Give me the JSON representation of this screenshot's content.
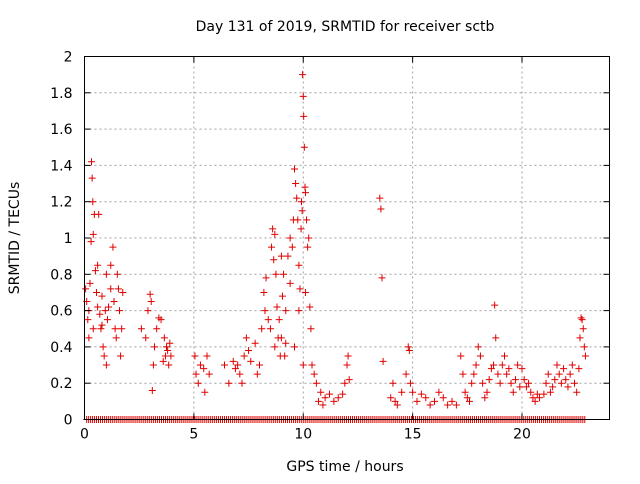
{
  "chart_data": {
    "type": "scatter",
    "title": "Day 131 of 2019, SRMTID for receiver sctb",
    "xlabel": "GPS time / hours",
    "ylabel": "SRMTID / TECUs",
    "xlim": [
      0,
      24
    ],
    "ylim": [
      0,
      2
    ],
    "xticks": [
      0,
      5,
      10,
      15,
      20
    ],
    "yticks": [
      0,
      0.2,
      0.4,
      0.6,
      0.8,
      1,
      1.2,
      1.4,
      1.6,
      1.8,
      2
    ],
    "xtick_labels": [
      "0",
      "5",
      "10",
      "15",
      "20"
    ],
    "ytick_labels": [
      "0",
      "0.2",
      "0.4",
      "0.6",
      "0.8",
      "1",
      "1.2",
      "1.4",
      "1.6",
      "1.8",
      "2"
    ],
    "grid": true,
    "marker": "+",
    "marker_color": "#e00000",
    "series": [
      {
        "name": "SRMTID",
        "points": [
          [
            0.05,
            0.72
          ],
          [
            0.1,
            0.65
          ],
          [
            0.15,
            0.55
          ],
          [
            0.2,
            0.6
          ],
          [
            0.25,
            0.75
          ],
          [
            0.3,
            0.98
          ],
          [
            0.32,
            1.42
          ],
          [
            0.35,
            1.33
          ],
          [
            0.38,
            1.2
          ],
          [
            0.4,
            1.02
          ],
          [
            0.45,
            1.13
          ],
          [
            0.5,
            0.82
          ],
          [
            0.55,
            0.7
          ],
          [
            0.6,
            0.62
          ],
          [
            0.65,
            1.13
          ],
          [
            0.7,
            0.58
          ],
          [
            0.75,
            0.5
          ],
          [
            0.8,
            0.68
          ],
          [
            0.85,
            0.4
          ],
          [
            0.9,
            0.35
          ],
          [
            0.95,
            0.6
          ],
          [
            1.0,
            0.3
          ],
          [
            1.05,
            0.55
          ],
          [
            1.1,
            0.62
          ],
          [
            1.2,
            0.72
          ],
          [
            1.3,
            0.95
          ],
          [
            1.35,
            0.65
          ],
          [
            1.4,
            0.5
          ],
          [
            1.45,
            0.45
          ],
          [
            1.5,
            0.8
          ],
          [
            1.55,
            0.72
          ],
          [
            1.6,
            0.6
          ],
          [
            1.65,
            0.35
          ],
          [
            1.7,
            0.5
          ],
          [
            1.75,
            0.7
          ],
          [
            0.2,
            0.45
          ],
          [
            0.4,
            0.5
          ],
          [
            0.6,
            0.85
          ],
          [
            0.8,
            0.52
          ],
          [
            1.0,
            0.8
          ],
          [
            1.2,
            0.85
          ],
          [
            2.6,
            0.5
          ],
          [
            2.8,
            0.45
          ],
          [
            2.9,
            0.6
          ],
          [
            3.0,
            0.69
          ],
          [
            3.05,
            0.65
          ],
          [
            3.1,
            0.16
          ],
          [
            3.15,
            0.3
          ],
          [
            3.2,
            0.4
          ],
          [
            3.3,
            0.5
          ],
          [
            3.4,
            0.56
          ],
          [
            3.5,
            0.55
          ],
          [
            3.6,
            0.32
          ],
          [
            3.7,
            0.35
          ],
          [
            3.75,
            0.4
          ],
          [
            3.8,
            0.38
          ],
          [
            3.85,
            0.3
          ],
          [
            3.9,
            0.42
          ],
          [
            3.95,
            0.35
          ],
          [
            3.65,
            0.45
          ],
          [
            5.05,
            0.35
          ],
          [
            5.1,
            0.25
          ],
          [
            5.2,
            0.2
          ],
          [
            5.3,
            0.3
          ],
          [
            5.45,
            0.28
          ],
          [
            5.5,
            0.15
          ],
          [
            5.6,
            0.35
          ],
          [
            5.7,
            0.25
          ],
          [
            6.4,
            0.3
          ],
          [
            6.6,
            0.2
          ],
          [
            6.8,
            0.32
          ],
          [
            6.9,
            0.28
          ],
          [
            7.0,
            0.3
          ],
          [
            7.1,
            0.25
          ],
          [
            7.2,
            0.2
          ],
          [
            7.3,
            0.35
          ],
          [
            7.4,
            0.45
          ],
          [
            7.5,
            0.38
          ],
          [
            7.6,
            0.32
          ],
          [
            7.8,
            0.42
          ],
          [
            7.9,
            0.25
          ],
          [
            8.0,
            0.3
          ],
          [
            8.1,
            0.5
          ],
          [
            8.2,
            0.7
          ],
          [
            8.25,
            0.6
          ],
          [
            8.3,
            0.78
          ],
          [
            8.4,
            0.55
          ],
          [
            8.5,
            0.5
          ],
          [
            8.55,
            0.95
          ],
          [
            8.6,
            1.05
          ],
          [
            8.65,
            0.88
          ],
          [
            8.7,
            1.02
          ],
          [
            8.75,
            0.8
          ],
          [
            8.8,
            0.62
          ],
          [
            8.85,
            0.45
          ],
          [
            8.9,
            0.55
          ],
          [
            8.95,
            0.35
          ],
          [
            9.0,
            0.45
          ],
          [
            9.05,
            0.68
          ],
          [
            9.1,
            0.8
          ],
          [
            9.15,
            0.35
          ],
          [
            9.2,
            0.42
          ],
          [
            9.3,
            0.9
          ],
          [
            9.4,
            1.0
          ],
          [
            9.5,
            0.95
          ],
          [
            9.55,
            1.1
          ],
          [
            9.6,
            1.38
          ],
          [
            9.65,
            1.3
          ],
          [
            9.7,
            1.22
          ],
          [
            9.75,
            1.1
          ],
          [
            9.8,
            0.85
          ],
          [
            9.85,
            0.72
          ],
          [
            9.9,
            1.05
          ],
          [
            9.92,
            1.2
          ],
          [
            9.95,
            1.15
          ],
          [
            9.97,
            1.9
          ],
          [
            10.0,
            1.78
          ],
          [
            10.02,
            1.67
          ],
          [
            10.05,
            1.5
          ],
          [
            10.08,
            1.28
          ],
          [
            10.1,
            1.25
          ],
          [
            10.15,
            1.1
          ],
          [
            10.2,
            0.95
          ],
          [
            10.25,
            1.0
          ],
          [
            10.3,
            0.62
          ],
          [
            10.35,
            0.5
          ],
          [
            10.4,
            0.3
          ],
          [
            10.5,
            0.25
          ],
          [
            10.6,
            0.2
          ],
          [
            10.7,
            0.1
          ],
          [
            10.8,
            0.15
          ],
          [
            10.9,
            0.08
          ],
          [
            11.0,
            0.12
          ],
          [
            11.2,
            0.14
          ],
          [
            11.4,
            0.1
          ],
          [
            11.6,
            0.12
          ],
          [
            11.8,
            0.14
          ],
          [
            11.9,
            0.2
          ],
          [
            12.0,
            0.3
          ],
          [
            12.05,
            0.35
          ],
          [
            12.1,
            0.22
          ],
          [
            9.4,
            0.75
          ],
          [
            9.6,
            0.4
          ],
          [
            9.8,
            0.6
          ],
          [
            10.0,
            0.3
          ],
          [
            10.1,
            0.7
          ],
          [
            8.7,
            0.4
          ],
          [
            9.0,
            0.9
          ],
          [
            9.2,
            0.6
          ],
          [
            13.5,
            1.22
          ],
          [
            13.55,
            1.16
          ],
          [
            13.6,
            0.78
          ],
          [
            13.65,
            0.32
          ],
          [
            14.0,
            0.12
          ],
          [
            14.1,
            0.2
          ],
          [
            14.2,
            0.1
          ],
          [
            14.3,
            0.08
          ],
          [
            14.5,
            0.15
          ],
          [
            14.7,
            0.25
          ],
          [
            14.8,
            0.4
          ],
          [
            14.85,
            0.38
          ],
          [
            14.9,
            0.2
          ],
          [
            15.0,
            0.15
          ],
          [
            15.2,
            0.1
          ],
          [
            15.4,
            0.14
          ],
          [
            15.6,
            0.12
          ],
          [
            15.8,
            0.08
          ],
          [
            16.0,
            0.1
          ],
          [
            16.2,
            0.15
          ],
          [
            16.4,
            0.12
          ],
          [
            16.6,
            0.08
          ],
          [
            16.8,
            0.1
          ],
          [
            17.0,
            0.08
          ],
          [
            17.2,
            0.35
          ],
          [
            17.3,
            0.25
          ],
          [
            17.4,
            0.15
          ],
          [
            17.5,
            0.12
          ],
          [
            17.6,
            0.1
          ],
          [
            17.7,
            0.2
          ],
          [
            17.8,
            0.25
          ],
          [
            17.9,
            0.3
          ],
          [
            18.0,
            0.4
          ],
          [
            18.1,
            0.35
          ],
          [
            18.2,
            0.2
          ],
          [
            18.3,
            0.12
          ],
          [
            18.4,
            0.15
          ],
          [
            18.5,
            0.22
          ],
          [
            18.6,
            0.28
          ],
          [
            18.7,
            0.3
          ],
          [
            18.75,
            0.63
          ],
          [
            18.8,
            0.45
          ],
          [
            18.9,
            0.25
          ],
          [
            19.0,
            0.2
          ],
          [
            19.1,
            0.3
          ],
          [
            19.2,
            0.35
          ],
          [
            19.3,
            0.25
          ],
          [
            19.4,
            0.28
          ],
          [
            19.5,
            0.2
          ],
          [
            19.6,
            0.15
          ],
          [
            19.7,
            0.22
          ],
          [
            19.8,
            0.3
          ],
          [
            19.9,
            0.18
          ],
          [
            20.0,
            0.28
          ],
          [
            20.1,
            0.22
          ],
          [
            20.2,
            0.18
          ],
          [
            20.3,
            0.2
          ],
          [
            20.4,
            0.15
          ],
          [
            20.5,
            0.12
          ],
          [
            20.6,
            0.1
          ],
          [
            20.7,
            0.14
          ],
          [
            20.8,
            0.12
          ],
          [
            21.0,
            0.14
          ],
          [
            21.1,
            0.2
          ],
          [
            21.2,
            0.25
          ],
          [
            21.3,
            0.15
          ],
          [
            21.4,
            0.18
          ],
          [
            21.5,
            0.22
          ],
          [
            21.6,
            0.3
          ],
          [
            21.7,
            0.25
          ],
          [
            21.8,
            0.2
          ],
          [
            21.9,
            0.28
          ],
          [
            22.0,
            0.22
          ],
          [
            22.1,
            0.18
          ],
          [
            22.2,
            0.25
          ],
          [
            22.3,
            0.3
          ],
          [
            22.4,
            0.2
          ],
          [
            22.5,
            0.15
          ],
          [
            22.6,
            0.28
          ],
          [
            22.65,
            0.45
          ],
          [
            22.7,
            0.56
          ],
          [
            22.75,
            0.55
          ],
          [
            22.8,
            0.5
          ],
          [
            22.85,
            0.4
          ],
          [
            22.9,
            0.35
          ]
        ]
      }
    ],
    "zero_band": {
      "y": 0,
      "description_x_ranges": [
        [
          0.1,
          22.9
        ]
      ]
    }
  }
}
